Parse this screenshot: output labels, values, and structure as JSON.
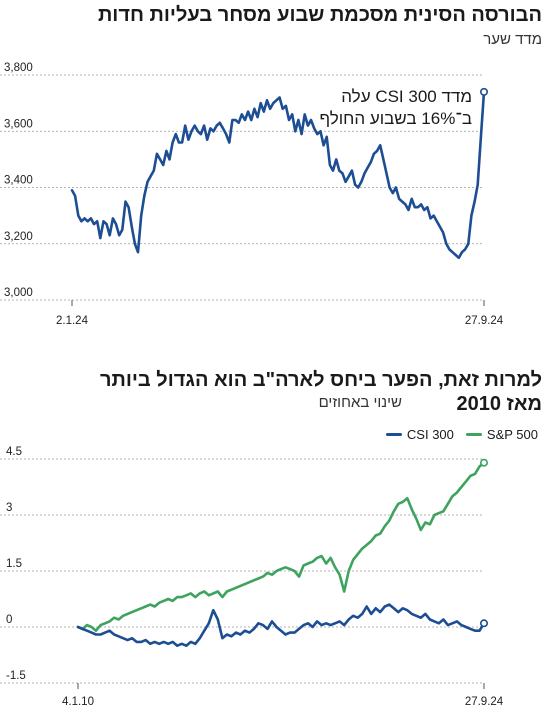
{
  "chart_data": [
    {
      "type": "line",
      "title": "הבורסה הסינית מסכמת שבוע מסחר בעליות חדות",
      "subtitle": "מדד שער",
      "x_ticks": [
        "2.1.24",
        "27.9.24"
      ],
      "ylim": [
        3000,
        3800
      ],
      "y_ticks": [
        3000,
        3200,
        3400,
        3600,
        3800
      ],
      "y_tick_labels": [
        "3,000",
        "3,200",
        "3,400",
        "3,600",
        "3,800"
      ],
      "annotation": [
        "מדד CSI 300 עלה",
        "ב־16% בשבוע החולף"
      ],
      "series": [
        {
          "color": "#1d4e94",
          "values": [
            3390,
            3370,
            3300,
            3280,
            3290,
            3280,
            3290,
            3270,
            3280,
            3220,
            3280,
            3270,
            3230,
            3290,
            3270,
            3230,
            3250,
            3350,
            3330,
            3260,
            3200,
            3170,
            3300,
            3370,
            3420,
            3440,
            3460,
            3520,
            3500,
            3480,
            3530,
            3500,
            3560,
            3590,
            3560,
            3560,
            3620,
            3570,
            3600,
            3620,
            3600,
            3590,
            3620,
            3570,
            3610,
            3600,
            3620,
            3630,
            3610,
            3590,
            3560,
            3640,
            3640,
            3630,
            3660,
            3640,
            3670,
            3640,
            3680,
            3650,
            3700,
            3670,
            3710,
            3680,
            3700,
            3710,
            3720,
            3680,
            3690,
            3640,
            3660,
            3600,
            3640,
            3590,
            3660,
            3620,
            3640,
            3610,
            3590,
            3600,
            3550,
            3580,
            3480,
            3460,
            3500,
            3460,
            3450,
            3420,
            3440,
            3460,
            3410,
            3400,
            3420,
            3450,
            3470,
            3490,
            3520,
            3530,
            3550,
            3500,
            3450,
            3400,
            3380,
            3400,
            3360,
            3350,
            3340,
            3320,
            3360,
            3330,
            3330,
            3340,
            3320,
            3330,
            3290,
            3300,
            3280,
            3260,
            3240,
            3200,
            3180,
            3170,
            3160,
            3150,
            3170,
            3180,
            3200,
            3300,
            3350,
            3410,
            3580,
            3740
          ]
        }
      ]
    },
    {
      "type": "line",
      "title": [
        "למרות זאת, הפער ביחס לארה\"ב הוא הגדול ביותר",
        "מאז 2010"
      ],
      "subtitle": "שינוי באחוזים",
      "x_ticks": [
        "4.1.10",
        "27.9.24"
      ],
      "ylim": [
        -1.5,
        4.5
      ],
      "y_ticks": [
        -1.5,
        0,
        1.5,
        3,
        4.5
      ],
      "y_tick_labels": [
        "-1.5",
        "0",
        "1.5",
        "3",
        "4.5"
      ],
      "legend": [
        "S&P 500",
        "CSI 300"
      ],
      "series": [
        {
          "name": "S&P 500",
          "color": "#3da35d",
          "values": [
            0,
            -0.05,
            0.05,
            0.0,
            -0.1,
            0.05,
            0.1,
            0.15,
            0.25,
            0.2,
            0.3,
            0.35,
            0.4,
            0.45,
            0.5,
            0.55,
            0.6,
            0.55,
            0.65,
            0.7,
            0.75,
            0.7,
            0.8,
            0.8,
            0.85,
            0.9,
            0.8,
            0.9,
            0.95,
            0.85,
            0.9,
            0.95,
            0.8,
            0.95,
            1.0,
            1.05,
            1.1,
            1.15,
            1.2,
            1.25,
            1.3,
            1.35,
            1.45,
            1.4,
            1.5,
            1.55,
            1.6,
            1.55,
            1.5,
            1.35,
            1.65,
            1.7,
            1.75,
            1.85,
            1.9,
            1.7,
            1.85,
            1.6,
            1.4,
            0.95,
            1.5,
            1.8,
            1.95,
            2.1,
            2.2,
            2.3,
            2.45,
            2.5,
            2.7,
            2.85,
            3.1,
            3.3,
            3.35,
            3.45,
            3.15,
            2.9,
            2.6,
            2.8,
            2.75,
            3.0,
            3.05,
            3.1,
            3.3,
            3.5,
            3.6,
            3.75,
            3.9,
            4.05,
            4.1,
            4.3,
            4.4
          ]
        },
        {
          "name": "CSI 300",
          "color": "#1d4e94",
          "values": [
            0,
            -0.05,
            -0.1,
            -0.15,
            -0.2,
            -0.2,
            -0.15,
            -0.1,
            -0.2,
            -0.25,
            -0.3,
            -0.35,
            -0.3,
            -0.4,
            -0.4,
            -0.35,
            -0.45,
            -0.4,
            -0.45,
            -0.4,
            -0.45,
            -0.4,
            -0.5,
            -0.45,
            -0.5,
            -0.4,
            -0.45,
            -0.3,
            -0.1,
            0.1,
            0.45,
            0.2,
            -0.3,
            -0.2,
            -0.25,
            -0.15,
            -0.2,
            -0.1,
            -0.15,
            -0.05,
            0.1,
            0.05,
            -0.05,
            0.15,
            0.0,
            -0.1,
            -0.2,
            -0.15,
            -0.15,
            -0.05,
            0.05,
            0.1,
            0.0,
            0.15,
            0.05,
            0.1,
            0.05,
            0.1,
            0.15,
            0.05,
            0.2,
            0.3,
            0.25,
            0.35,
            0.55,
            0.35,
            0.5,
            0.4,
            0.55,
            0.6,
            0.5,
            0.4,
            0.5,
            0.45,
            0.35,
            0.3,
            0.25,
            0.35,
            0.2,
            0.15,
            0.1,
            0.2,
            0.05,
            0.1,
            0.15,
            0.05,
            0.0,
            -0.05,
            -0.1,
            -0.1,
            0.1
          ]
        }
      ]
    }
  ]
}
